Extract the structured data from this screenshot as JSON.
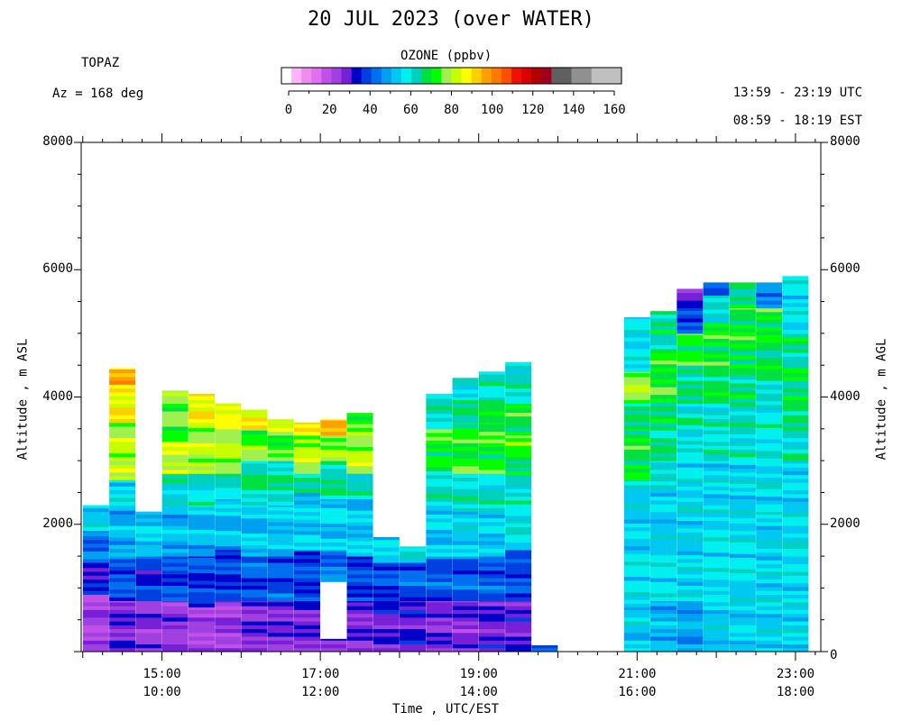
{
  "title": "20 JUL 2023 (over WATER)",
  "header": {
    "instrument": "TOPAZ",
    "azimuth": "Az = 168 deg",
    "utc_range": "13:59 - 23:19 UTC",
    "est_range": "08:59 - 18:19 EST"
  },
  "colorbar": {
    "title": "OZONE (ppbv)",
    "ticks": [
      "0",
      "20",
      "40",
      "60",
      "80",
      "100",
      "120",
      "140",
      "160"
    ],
    "colors": [
      "#ffffff",
      "#ffb3ff",
      "#f08cf0",
      "#e070f0",
      "#c050e8",
      "#a040e0",
      "#7820d8",
      "#0000c8",
      "#0040e0",
      "#0070f0",
      "#00a0f0",
      "#00c8f0",
      "#00f0f0",
      "#00d0c0",
      "#00e040",
      "#00ff00",
      "#a0f050",
      "#c8ff00",
      "#ffff00",
      "#ffd000",
      "#ffa000",
      "#ff7800",
      "#ff5000",
      "#f01000",
      "#d80000",
      "#b00000",
      "#a00020",
      "#606060",
      "#606060",
      "#909090",
      "#909090",
      "#c0c0c0",
      "#c0c0c0",
      "#c0c0c0"
    ]
  },
  "axes": {
    "xlabel": "Time , UTC/EST",
    "ylabel_left": "Altitude , m ASL",
    "ylabel_right": "Altitude , m AGL",
    "left_ticks": [
      "8000",
      "6000",
      "4000",
      "2000"
    ],
    "right_ticks": [
      "8000",
      "6000",
      "4000",
      "2000",
      "0"
    ],
    "x_ticks_utc": [
      "15:00",
      "17:00",
      "19:00",
      "21:00",
      "23:00"
    ],
    "x_ticks_est": [
      "10:00",
      "12:00",
      "14:00",
      "16:00",
      "18:00"
    ]
  },
  "chart_data": {
    "type": "heatmap",
    "title": "20 JUL 2023 (over WATER)",
    "xlabel": "Time , UTC/EST",
    "ylabel": "Altitude , m ASL",
    "variable": "OZONE (ppbv)",
    "x_unit": "hours UTC",
    "xlim": [
      13.98,
      23.32
    ],
    "ylim": [
      0,
      8000
    ],
    "color_range": [
      0,
      160
    ],
    "color_ticks": [
      0,
      20,
      40,
      60,
      80,
      100,
      120,
      140,
      160
    ],
    "grid": false,
    "profiles": [
      {
        "time": "14:10",
        "top": 2300,
        "layers": [
          {
            "base": 0,
            "ozone": 25
          },
          {
            "base": 900,
            "ozone": 35
          },
          {
            "base": 1400,
            "ozone": 45
          },
          {
            "base": 1900,
            "ozone": 55
          }
        ]
      },
      {
        "time": "14:30",
        "top": 4450,
        "layers": [
          {
            "base": 0,
            "ozone": 30
          },
          {
            "base": 800,
            "ozone": 42
          },
          {
            "base": 1500,
            "ozone": 52
          },
          {
            "base": 2300,
            "ozone": 58
          },
          {
            "base": 2700,
            "ozone": 80
          },
          {
            "base": 3600,
            "ozone": 88
          },
          {
            "base": 4200,
            "ozone": 95
          }
        ]
      },
      {
        "time": "14:50",
        "top": 2200,
        "layers": [
          {
            "base": 0,
            "ozone": 28
          },
          {
            "base": 800,
            "ozone": 38
          },
          {
            "base": 1500,
            "ozone": 55
          }
        ]
      },
      {
        "time": "15:10",
        "top": 4100,
        "layers": [
          {
            "base": 0,
            "ozone": 28
          },
          {
            "base": 800,
            "ozone": 40
          },
          {
            "base": 1500,
            "ozone": 52
          },
          {
            "base": 2300,
            "ozone": 58
          },
          {
            "base": 2600,
            "ozone": 65
          },
          {
            "base": 2800,
            "ozone": 82
          },
          {
            "base": 3300,
            "ozone": 74
          },
          {
            "base": 3900,
            "ozone": 80
          }
        ]
      },
      {
        "time": "15:30",
        "top": 4050,
        "layers": [
          {
            "base": 0,
            "ozone": 25
          },
          {
            "base": 700,
            "ozone": 40
          },
          {
            "base": 1500,
            "ozone": 52
          },
          {
            "base": 2300,
            "ozone": 60
          },
          {
            "base": 2800,
            "ozone": 80
          },
          {
            "base": 3600,
            "ozone": 88
          }
        ]
      },
      {
        "time": "15:50",
        "top": 3900,
        "layers": [
          {
            "base": 0,
            "ozone": 27
          },
          {
            "base": 800,
            "ozone": 40
          },
          {
            "base": 1600,
            "ozone": 52
          },
          {
            "base": 2400,
            "ozone": 62
          },
          {
            "base": 2800,
            "ozone": 80
          },
          {
            "base": 3500,
            "ozone": 85
          }
        ]
      },
      {
        "time": "16:10",
        "top": 3800,
        "layers": [
          {
            "base": 0,
            "ozone": 30
          },
          {
            "base": 800,
            "ozone": 42
          },
          {
            "base": 1500,
            "ozone": 53
          },
          {
            "base": 2300,
            "ozone": 65
          },
          {
            "base": 3000,
            "ozone": 75
          },
          {
            "base": 3500,
            "ozone": 85
          }
        ]
      },
      {
        "time": "16:30",
        "top": 3650,
        "layers": [
          {
            "base": 0,
            "ozone": 30
          },
          {
            "base": 800,
            "ozone": 42
          },
          {
            "base": 1500,
            "ozone": 53
          },
          {
            "base": 2300,
            "ozone": 65
          },
          {
            "base": 3000,
            "ozone": 72
          },
          {
            "base": 3400,
            "ozone": 80
          }
        ]
      },
      {
        "time": "16:50",
        "top": 3600,
        "layers": [
          {
            "base": 0,
            "ozone": 32
          },
          {
            "base": 800,
            "ozone": 40
          },
          {
            "base": 1600,
            "ozone": 55
          },
          {
            "base": 2500,
            "ozone": 62
          },
          {
            "base": 2800,
            "ozone": 80
          },
          {
            "base": 3400,
            "ozone": 88
          }
        ]
      },
      {
        "time": "17:10",
        "top": 3650,
        "layers": [
          {
            "base": 0,
            "ozone": 30
          },
          {
            "base": 200,
            "ozone": null
          },
          {
            "base": 1100,
            "ozone": 45
          },
          {
            "base": 1600,
            "ozone": 55
          },
          {
            "base": 2400,
            "ozone": 65
          },
          {
            "base": 3000,
            "ozone": 78
          },
          {
            "base": 3400,
            "ozone": 92
          }
        ]
      },
      {
        "time": "17:30",
        "top": 3750,
        "layers": [
          {
            "base": 0,
            "ozone": 30
          },
          {
            "base": 800,
            "ozone": 40
          },
          {
            "base": 1500,
            "ozone": 53
          },
          {
            "base": 2400,
            "ozone": 62
          },
          {
            "base": 2800,
            "ozone": 80
          },
          {
            "base": 3400,
            "ozone": 75
          }
        ]
      },
      {
        "time": "17:50",
        "top": 1800,
        "layers": [
          {
            "base": 0,
            "ozone": 32
          },
          {
            "base": 800,
            "ozone": 40
          },
          {
            "base": 1400,
            "ozone": 55
          }
        ]
      },
      {
        "time": "18:10",
        "top": 1650,
        "layers": [
          {
            "base": 0,
            "ozone": 33
          },
          {
            "base": 800,
            "ozone": 42
          },
          {
            "base": 1400,
            "ozone": 60
          }
        ]
      },
      {
        "time": "18:30",
        "top": 4050,
        "layers": [
          {
            "base": 0,
            "ozone": 30
          },
          {
            "base": 800,
            "ozone": 42
          },
          {
            "base": 1500,
            "ozone": 55
          },
          {
            "base": 2300,
            "ozone": 62
          },
          {
            "base": 2900,
            "ozone": 72
          },
          {
            "base": 3500,
            "ozone": 62
          }
        ]
      },
      {
        "time": "18:50",
        "top": 4300,
        "layers": [
          {
            "base": 0,
            "ozone": 30
          },
          {
            "base": 800,
            "ozone": 42
          },
          {
            "base": 1500,
            "ozone": 55
          },
          {
            "base": 2200,
            "ozone": 62
          },
          {
            "base": 2800,
            "ozone": 72
          },
          {
            "base": 3600,
            "ozone": 65
          },
          {
            "base": 4000,
            "ozone": 58
          }
        ]
      },
      {
        "time": "19:10",
        "top": 4400,
        "layers": [
          {
            "base": 0,
            "ozone": 32
          },
          {
            "base": 800,
            "ozone": 42
          },
          {
            "base": 1500,
            "ozone": 55
          },
          {
            "base": 2200,
            "ozone": 62
          },
          {
            "base": 2800,
            "ozone": 72
          },
          {
            "base": 3600,
            "ozone": 68
          },
          {
            "base": 4000,
            "ozone": 62
          }
        ]
      },
      {
        "time": "19:30",
        "top": 4550,
        "layers": [
          {
            "base": 0,
            "ozone": 32
          },
          {
            "base": 800,
            "ozone": 40
          },
          {
            "base": 1600,
            "ozone": 60
          },
          {
            "base": 2600,
            "ozone": 65
          },
          {
            "base": 3000,
            "ozone": 75
          },
          {
            "base": 3400,
            "ozone": 70
          },
          {
            "base": 3900,
            "ozone": 62
          }
        ]
      },
      {
        "time": "19:50",
        "top": 100,
        "layers": [
          {
            "base": 0,
            "ozone": 38
          }
        ]
      },
      {
        "time": "21:00",
        "top": 5250,
        "layers": [
          {
            "base": 0,
            "ozone": 55
          },
          {
            "base": 700,
            "ozone": 58
          },
          {
            "base": 1600,
            "ozone": 55
          },
          {
            "base": 2500,
            "ozone": 62
          },
          {
            "base": 2700,
            "ozone": 70
          },
          {
            "base": 3500,
            "ozone": 65
          },
          {
            "base": 3900,
            "ozone": 78
          },
          {
            "base": 4400,
            "ozone": 58
          }
        ]
      },
      {
        "time": "21:20",
        "top": 5350,
        "layers": [
          {
            "base": 0,
            "ozone": 52
          },
          {
            "base": 800,
            "ozone": 58
          },
          {
            "base": 1600,
            "ozone": 55
          },
          {
            "base": 2500,
            "ozone": 60
          },
          {
            "base": 3000,
            "ozone": 65
          },
          {
            "base": 3800,
            "ozone": 72
          },
          {
            "base": 4700,
            "ozone": 65
          }
        ]
      },
      {
        "time": "21:40",
        "top": 5700,
        "layers": [
          {
            "base": 0,
            "ozone": 50
          },
          {
            "base": 800,
            "ozone": 56
          },
          {
            "base": 2000,
            "ozone": 58
          },
          {
            "base": 3200,
            "ozone": 62
          },
          {
            "base": 3900,
            "ozone": 65
          },
          {
            "base": 4500,
            "ozone": 72
          },
          {
            "base": 5000,
            "ozone": 42
          },
          {
            "base": 5400,
            "ozone": 30
          }
        ]
      },
      {
        "time": "22:00",
        "top": 5800,
        "layers": [
          {
            "base": 0,
            "ozone": 55
          },
          {
            "base": 900,
            "ozone": 58
          },
          {
            "base": 2000,
            "ozone": 56
          },
          {
            "base": 3000,
            "ozone": 62
          },
          {
            "base": 3900,
            "ozone": 68
          },
          {
            "base": 4500,
            "ozone": 70
          },
          {
            "base": 5200,
            "ozone": 60
          },
          {
            "base": 5600,
            "ozone": 45
          }
        ]
      },
      {
        "time": "22:20",
        "top": 5800,
        "layers": [
          {
            "base": 0,
            "ozone": 55
          },
          {
            "base": 1000,
            "ozone": 58
          },
          {
            "base": 2100,
            "ozone": 56
          },
          {
            "base": 3000,
            "ozone": 62
          },
          {
            "base": 3800,
            "ozone": 66
          },
          {
            "base": 4600,
            "ozone": 70
          },
          {
            "base": 5400,
            "ozone": 68
          }
        ]
      },
      {
        "time": "22:40",
        "top": 5800,
        "layers": [
          {
            "base": 0,
            "ozone": 56
          },
          {
            "base": 1200,
            "ozone": 56
          },
          {
            "base": 2200,
            "ozone": 58
          },
          {
            "base": 3100,
            "ozone": 60
          },
          {
            "base": 4200,
            "ozone": 68
          },
          {
            "base": 4800,
            "ozone": 70
          },
          {
            "base": 5400,
            "ozone": 48
          }
        ]
      },
      {
        "time": "23:00",
        "top": 5900,
        "layers": [
          {
            "base": 0,
            "ozone": 56
          },
          {
            "base": 1200,
            "ozone": 58
          },
          {
            "base": 2000,
            "ozone": 56
          },
          {
            "base": 3000,
            "ozone": 62
          },
          {
            "base": 3600,
            "ozone": 68
          },
          {
            "base": 4400,
            "ozone": 65
          },
          {
            "base": 5000,
            "ozone": 58
          }
        ]
      }
    ]
  }
}
